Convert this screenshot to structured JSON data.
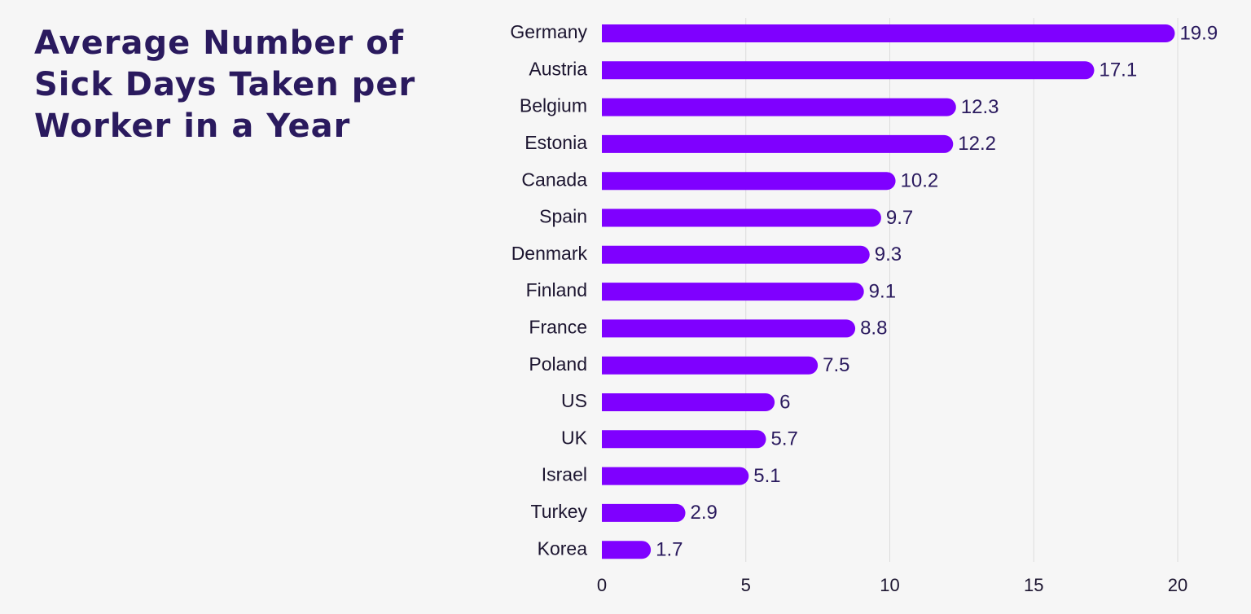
{
  "chart_data": {
    "type": "bar",
    "orientation": "horizontal",
    "title": "Average Number of Sick Days Taken per Worker in a Year",
    "categories": [
      "Germany",
      "Austria",
      "Belgium",
      "Estonia",
      "Canada",
      "Spain",
      "Denmark",
      "Finland",
      "France",
      "Poland",
      "US",
      "UK",
      "Israel",
      "Turkey",
      "Korea"
    ],
    "values": [
      19.9,
      17.1,
      12.3,
      12.2,
      10.2,
      9.7,
      9.3,
      9.1,
      8.8,
      7.5,
      6,
      5.7,
      5.1,
      2.9,
      1.7
    ],
    "value_labels": [
      "19.9",
      "17.1",
      "12.3",
      "12.2",
      "10.2",
      "9.7",
      "9.3",
      "9.1",
      "8.8",
      "7.5",
      "6",
      "5.7",
      "5.1",
      "2.9",
      "1.7"
    ],
    "xlim": [
      0,
      20
    ],
    "x_ticks": [
      0,
      5,
      10,
      15,
      20
    ],
    "x_tick_labels": [
      "0",
      "5",
      "10",
      "15",
      "20"
    ],
    "xlabel": "",
    "ylabel": "",
    "grid": "vertical",
    "legend": "none",
    "bar_color": "#7f00ff",
    "title_color": "#2a1a5e",
    "grid_color": "#dcdcdc",
    "background_color": "#f6f6f6"
  }
}
